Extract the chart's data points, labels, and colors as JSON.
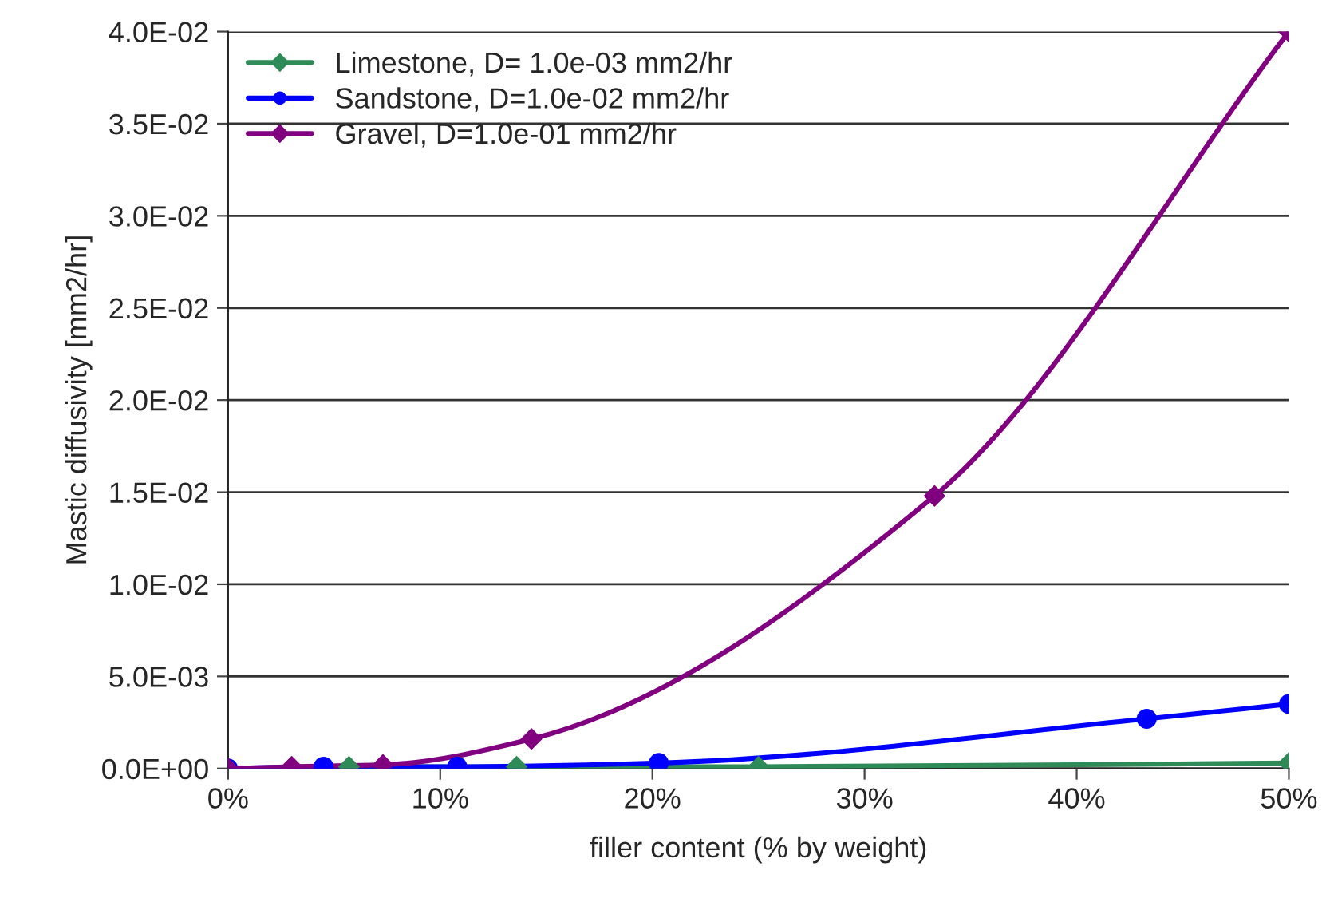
{
  "chart_data": {
    "type": "line",
    "xlabel": "filler content (% by weight)",
    "ylabel": "Mastic diffusivity [mm2/hr]",
    "series": [
      {
        "name": "Limestone, D= 1.0e-03 mm2/hr",
        "color": "#2e8b57",
        "marker": "diamond",
        "x": [
          0,
          5.7,
          13.6,
          25,
          50
        ],
        "values": [
          0.0,
          0.0001,
          0.0001,
          0.0001,
          0.0003
        ]
      },
      {
        "name": "Sandstone, D=1.0e-02 mm2/hr",
        "color": "#0000ff",
        "marker": "circle",
        "x": [
          0,
          4.5,
          10.8,
          20.3,
          43.3,
          50
        ],
        "values": [
          0.0,
          0.0001,
          0.0001,
          0.0003,
          0.0027,
          0.0035
        ]
      },
      {
        "name": "Gravel, D=1.0e-01 mm2/hr",
        "color": "#800080",
        "marker": "diamond",
        "x": [
          0,
          3,
          7.3,
          14.3,
          33.3,
          50
        ],
        "values": [
          0.0,
          0.0001,
          0.0002,
          0.0016,
          0.0148,
          0.04
        ]
      }
    ],
    "xlim": [
      0,
      50
    ],
    "xticks": [
      {
        "value": 0,
        "label": "0%"
      },
      {
        "value": 10,
        "label": "10%"
      },
      {
        "value": 20,
        "label": "20%"
      },
      {
        "value": 30,
        "label": "30%"
      },
      {
        "value": 40,
        "label": "40%"
      },
      {
        "value": 50,
        "label": "50%"
      }
    ],
    "ylim": [
      0,
      0.04
    ],
    "yticks": [
      {
        "value": 0,
        "label": "0.0E+00"
      },
      {
        "value": 0.005,
        "label": "5.0E-03"
      },
      {
        "value": 0.01,
        "label": "1.0E-02"
      },
      {
        "value": 0.015,
        "label": "1.5E-02"
      },
      {
        "value": 0.02,
        "label": "2.0E-02"
      },
      {
        "value": 0.025,
        "label": "2.5E-02"
      },
      {
        "value": 0.03,
        "label": "3.0E-02"
      },
      {
        "value": 0.035,
        "label": "3.5E-02"
      },
      {
        "value": 0.04,
        "label": "4.0E-02"
      }
    ],
    "grid": "y",
    "legend": "top left",
    "line_style": "solid"
  }
}
